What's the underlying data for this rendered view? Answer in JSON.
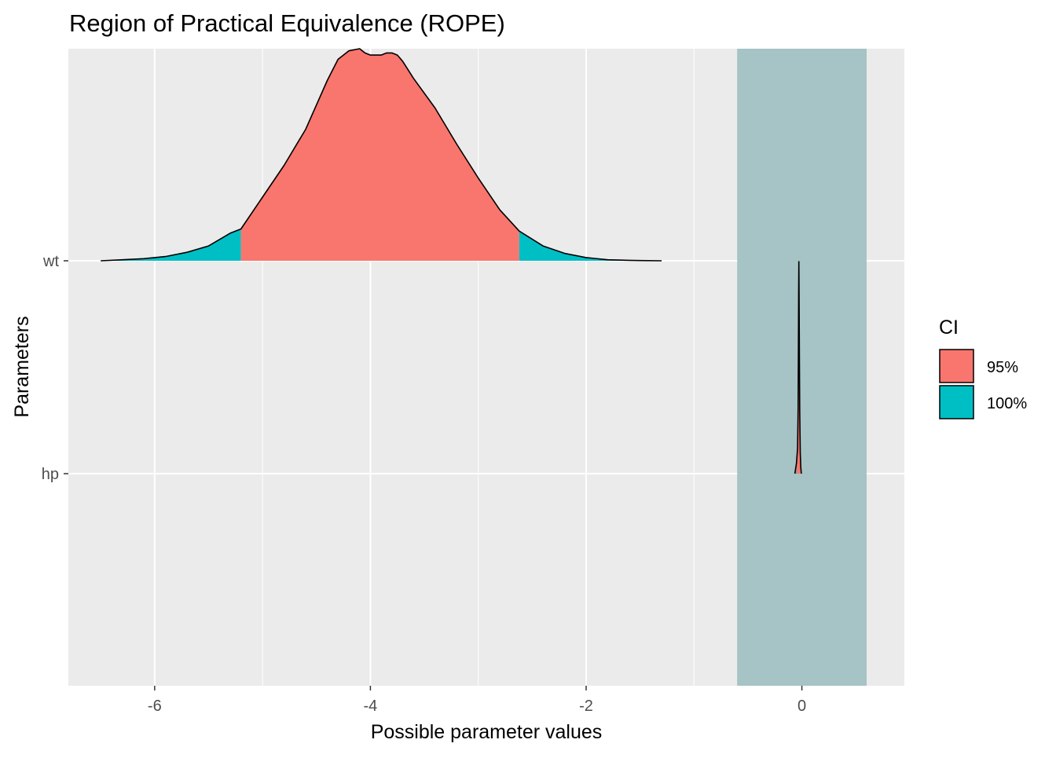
{
  "chart_data": {
    "type": "area",
    "title": "Region of Practical Equivalence (ROPE)",
    "xlabel": "Possible parameter values",
    "ylabel": "Parameters",
    "xlim": [
      -6.8,
      0.95
    ],
    "x_ticks": [
      -6,
      -4,
      -2,
      0
    ],
    "x_tick_labels": [
      "-6",
      "-4",
      "-2",
      "0"
    ],
    "categories": [
      "wt",
      "hp"
    ],
    "grid": true,
    "rope": {
      "range": [
        -0.6,
        0.6
      ],
      "color": "#a6c3c5"
    },
    "series": [
      {
        "parameter": "wt",
        "ci_95": [
          -5.2,
          -2.62
        ],
        "x": [
          -6.5,
          -6.3,
          -6.1,
          -5.9,
          -5.7,
          -5.5,
          -5.3,
          -5.2,
          -5.0,
          -4.8,
          -4.6,
          -4.4,
          -4.3,
          -4.2,
          -4.1,
          -4.05,
          -4.0,
          -3.95,
          -3.9,
          -3.85,
          -3.8,
          -3.75,
          -3.7,
          -3.6,
          -3.4,
          -3.2,
          -3.0,
          -2.8,
          -2.62,
          -2.4,
          -2.2,
          -2.0,
          -1.8,
          -1.6,
          -1.5,
          -1.3
        ],
        "density": [
          0.0,
          0.005,
          0.01,
          0.02,
          0.04,
          0.07,
          0.13,
          0.15,
          0.3,
          0.45,
          0.62,
          0.85,
          0.95,
          0.99,
          1.0,
          0.98,
          0.97,
          0.97,
          0.97,
          0.98,
          0.98,
          0.97,
          0.94,
          0.86,
          0.72,
          0.55,
          0.39,
          0.24,
          0.14,
          0.07,
          0.035,
          0.015,
          0.005,
          0.002,
          0.001,
          0.0
        ]
      },
      {
        "parameter": "hp",
        "ci_95": [
          -0.05,
          -0.01
        ],
        "x": [
          -0.065,
          -0.05,
          -0.04,
          -0.035,
          -0.032,
          -0.03,
          -0.028,
          -0.026,
          -0.023,
          -0.02,
          -0.015,
          -0.01,
          -0.005
        ],
        "density": [
          0.0,
          0.05,
          0.12,
          0.3,
          0.6,
          0.85,
          1.0,
          0.85,
          0.55,
          0.3,
          0.1,
          0.03,
          0.0
        ]
      }
    ],
    "legend": {
      "title": "CI",
      "placement": "right",
      "items": [
        {
          "label": "95%",
          "color": "#f8766d"
        },
        {
          "label": "100%",
          "color": "#00bfc4"
        }
      ]
    },
    "colors": {
      "panel": "#ebebeb",
      "grid": "#ffffff",
      "ci95": "#f8766d",
      "ci100": "#00bfc4",
      "outline": "#000000"
    }
  }
}
